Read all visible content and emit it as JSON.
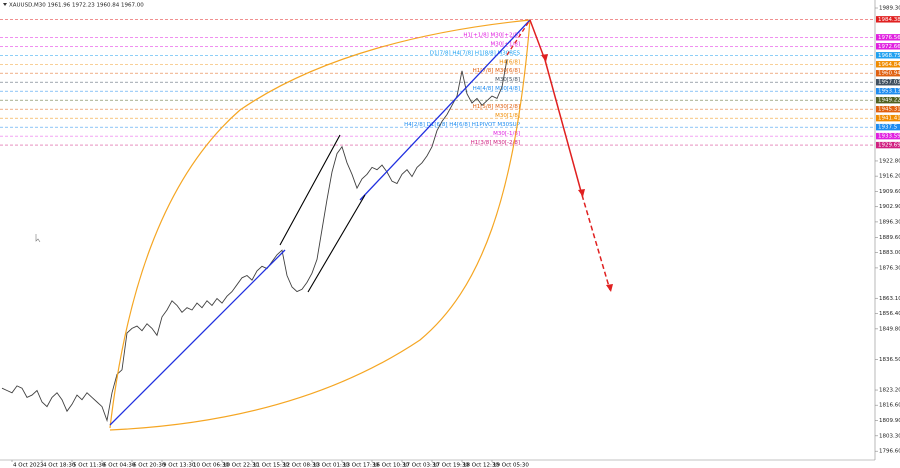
{
  "chart_data": {
    "type": "line",
    "title": "XAUUSD,M30  1961.96 1972.23 1960.84 1967.00",
    "color": "#404040",
    "ylim": [
      1792.78,
      1992.78
    ],
    "yticks": [
      {
        "value": 1989.3,
        "label": "1989.30"
      },
      {
        "value": 1922.8,
        "label": "1922.80"
      },
      {
        "value": 1916.2,
        "label": "1916.20"
      },
      {
        "value": 1909.6,
        "label": "1909.60"
      },
      {
        "value": 1902.9,
        "label": "1902.90"
      },
      {
        "value": 1896.3,
        "label": "1896.30"
      },
      {
        "value": 1889.6,
        "label": "1889.60"
      },
      {
        "value": 1883,
        "label": "1883.00"
      },
      {
        "value": 1876.3,
        "label": "1876.30"
      },
      {
        "value": 1863.1,
        "label": "1863.10"
      },
      {
        "value": 1856.4,
        "label": "1856.40"
      },
      {
        "value": 1849.8,
        "label": "1849.80"
      },
      {
        "value": 1836.5,
        "label": "1836.50"
      },
      {
        "value": 1823.2,
        "label": "1823.20"
      },
      {
        "value": 1816.6,
        "label": "1816.60"
      },
      {
        "value": 1809.9,
        "label": "1809.90"
      },
      {
        "value": 1803.3,
        "label": "1803.30"
      },
      {
        "value": 1796.6,
        "label": "1796.60"
      }
    ],
    "categories": [
      null,
      null,
      "4 Oct 2023",
      null,
      null,
      null,
      null,
      null,
      "4 Oct 18:30",
      null,
      null,
      null,
      null,
      null,
      "5 Oct 11:30",
      null,
      null,
      null,
      null,
      null,
      "6 Oct 04:30",
      null,
      null,
      null,
      null,
      null,
      "6 Oct 20:30",
      null,
      null,
      null,
      null,
      null,
      "9 Oct 13:30",
      null,
      null,
      null,
      null,
      null,
      "10 Oct 06:30",
      null,
      null,
      null,
      null,
      null,
      "10 Oct 22:30",
      null,
      null,
      null,
      null,
      null,
      "11 Oct 15:30",
      null,
      null,
      null,
      null,
      null,
      "12 Oct 08:30",
      null,
      null,
      null,
      null,
      null,
      "13 Oct 01:30",
      null,
      null,
      null,
      null,
      null,
      "13 Oct 17:30",
      null,
      null,
      null,
      null,
      null,
      "16 Oct 10:30",
      null,
      null,
      null,
      null,
      null,
      "17 Oct 03:30",
      null,
      null,
      null,
      null,
      null,
      "17 Oct 19:30",
      null,
      null,
      null,
      null,
      null,
      "18 Oct 12:30",
      null,
      null,
      null,
      null,
      null,
      "19 Oct 05:30",
      null,
      null,
      null
    ],
    "values": [
      1824,
      1823,
      1822,
      1825,
      1824,
      1820,
      1821,
      1823,
      1818,
      1816,
      1820,
      1822,
      1819,
      1814,
      1817,
      1821,
      1819,
      1822,
      1820,
      1818,
      1816,
      1810,
      1822,
      1830,
      1832,
      1848,
      1850,
      1851,
      1849,
      1852,
      1850,
      1847,
      1855,
      1858,
      1862,
      1860,
      1857,
      1859,
      1858,
      1861,
      1859,
      1862,
      1860,
      1863,
      1861,
      1864,
      1866,
      1869,
      1872,
      1873,
      1871,
      1875,
      1877,
      1876,
      1879,
      1882,
      1884,
      1873,
      1868,
      1866,
      1867,
      1870,
      1874,
      1880,
      1893,
      1906,
      1918,
      1926,
      1929,
      1922,
      1917,
      1911,
      1915,
      1917,
      1920,
      1919,
      1921,
      1918,
      1914,
      1913,
      1917,
      1919,
      1916,
      1920,
      1922,
      1925,
      1929,
      1936,
      1940,
      1943,
      1947,
      1951,
      1962,
      1952,
      1948,
      1950,
      1947,
      1949,
      1951,
      1950,
      1955,
      1967
    ],
    "levels": [
      {
        "price": 1984.38,
        "color": "#e02020"
      },
      {
        "price": 1976.56,
        "color": "#e020e0",
        "text": "H1[+1/8] M30[+2/8]"
      },
      {
        "price": 1972.66,
        "color": "#e020e0",
        "text": "M30[+1/8]"
      },
      {
        "price": 1968.75,
        "color": "#1ea0f0",
        "text": "D1[7/8] H4[7/8] H1[8/8] M30RES"
      },
      {
        "price": 1964.84,
        "color": "#f08c00",
        "text": "H4[6/8]"
      },
      {
        "price": 1960.94,
        "color": "#e06010",
        "text": "H1[7/8] M30[6/8]"
      },
      {
        "price": 1957.03,
        "color": "#405060",
        "text": "M30[5/8]"
      },
      {
        "price": 1953.13,
        "color": "#1e8cf0",
        "text": "H4[4/8] M30[4/8]"
      },
      {
        "price": 1949.22,
        "color": "#506020"
      },
      {
        "price": 1945.31,
        "color": "#e06010",
        "text": "H1[5/8] M30[2/8]"
      },
      {
        "price": 1941.41,
        "color": "#f08c00",
        "text": "M30[1/8]"
      },
      {
        "price": 1937.5,
        "color": "#1e8cf0",
        "text": "H4[2/8] D1[6/8] H4[6/8] H1PIVOT M30SUP"
      },
      {
        "price": 1933.59,
        "color": "#e020e0",
        "text": "M30[-1/8]"
      },
      {
        "price": 1929.69,
        "color": "#d02080",
        "text": "H1[3/8] M30[-2/8]"
      }
    ]
  }
}
